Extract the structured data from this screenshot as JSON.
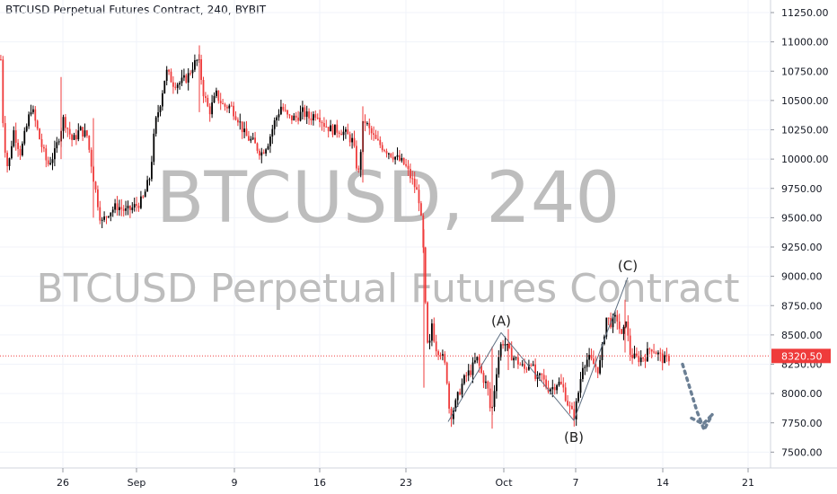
{
  "header": {
    "title": "BTCUSD Perpetual Futures Contract, 240, BYBIT"
  },
  "watermark": {
    "symbol_line": "BTCUSD, 240",
    "description_line": "BTCUSD Perpetual Futures Contract"
  },
  "colors": {
    "up": "#000000",
    "down": "#ef3b3b",
    "last_price": "#ef3b3b",
    "projection": "#6b7f94",
    "wave_line": "#5e6f82"
  },
  "chart_data": {
    "type": "candlestick",
    "title": "BTCUSD Perpetual Futures Contract, 240, BYBIT",
    "xlabel": "",
    "ylabel": "",
    "ylim": [
      7400,
      11350
    ],
    "y_ticks": [
      "11250.00",
      "11000.00",
      "10750.00",
      "10500.00",
      "10250.00",
      "10000.00",
      "9750.00",
      "9500.00",
      "9250.00",
      "9000.00",
      "8750.00",
      "8500.00",
      "8250.00",
      "8000.00",
      "7750.00",
      "7500.00"
    ],
    "x_ticks": [
      "26",
      "Sep",
      "9",
      "16",
      "23",
      "Oct",
      "7",
      "14",
      "21"
    ],
    "last_price": {
      "label": "8320.50",
      "value": 8320.5
    },
    "grid": true,
    "close_path": [
      [
        0,
        10850
      ],
      [
        3,
        10200
      ],
      [
        8,
        9900
      ],
      [
        14,
        10250
      ],
      [
        22,
        10050
      ],
      [
        34,
        10450
      ],
      [
        44,
        10150
      ],
      [
        52,
        9950
      ],
      [
        60,
        10050
      ],
      [
        70,
        10350
      ],
      [
        80,
        10150
      ],
      [
        88,
        10250
      ],
      [
        96,
        10200
      ],
      [
        104,
        9800
      ],
      [
        112,
        9450
      ],
      [
        120,
        9550
      ],
      [
        130,
        9600
      ],
      [
        140,
        9550
      ],
      [
        150,
        9600
      ],
      [
        158,
        9650
      ],
      [
        166,
        9850
      ],
      [
        172,
        10300
      ],
      [
        178,
        10500
      ],
      [
        184,
        10750
      ],
      [
        192,
        10650
      ],
      [
        200,
        10650
      ],
      [
        208,
        10700
      ],
      [
        214,
        10800
      ],
      [
        220,
        10850
      ],
      [
        226,
        10550
      ],
      [
        232,
        10400
      ],
      [
        240,
        10550
      ],
      [
        248,
        10450
      ],
      [
        256,
        10450
      ],
      [
        264,
        10350
      ],
      [
        272,
        10200
      ],
      [
        280,
        10150
      ],
      [
        290,
        10050
      ],
      [
        298,
        10150
      ],
      [
        304,
        10300
      ],
      [
        312,
        10450
      ],
      [
        320,
        10350
      ],
      [
        328,
        10350
      ],
      [
        336,
        10400
      ],
      [
        344,
        10350
      ],
      [
        352,
        10400
      ],
      [
        360,
        10300
      ],
      [
        368,
        10250
      ],
      [
        378,
        10250
      ],
      [
        386,
        10200
      ],
      [
        392,
        10150
      ],
      [
        398,
        9850
      ],
      [
        404,
        10350
      ],
      [
        410,
        10250
      ],
      [
        418,
        10150
      ],
      [
        426,
        10100
      ],
      [
        434,
        10050
      ],
      [
        442,
        10000
      ],
      [
        450,
        9950
      ],
      [
        456,
        9850
      ],
      [
        462,
        9750
      ],
      [
        466,
        9650
      ],
      [
        470,
        9300
      ],
      [
        473,
        8700
      ],
      [
        476,
        8300
      ],
      [
        480,
        8600
      ],
      [
        484,
        8400
      ],
      [
        490,
        8350
      ],
      [
        496,
        8200
      ],
      [
        500,
        7800
      ],
      [
        506,
        7900
      ],
      [
        512,
        8050
      ],
      [
        518,
        8150
      ],
      [
        524,
        8200
      ],
      [
        530,
        8300
      ],
      [
        536,
        8150
      ],
      [
        542,
        8050
      ],
      [
        546,
        7800
      ],
      [
        552,
        8200
      ],
      [
        556,
        8400
      ],
      [
        560,
        8450
      ],
      [
        566,
        8350
      ],
      [
        572,
        8300
      ],
      [
        578,
        8250
      ],
      [
        584,
        8200
      ],
      [
        590,
        8300
      ],
      [
        596,
        8100
      ],
      [
        602,
        8150
      ],
      [
        608,
        8050
      ],
      [
        614,
        8050
      ],
      [
        620,
        8100
      ],
      [
        626,
        8050
      ],
      [
        632,
        7900
      ],
      [
        638,
        7800
      ],
      [
        642,
        7950
      ],
      [
        648,
        8250
      ],
      [
        654,
        8300
      ],
      [
        660,
        8250
      ],
      [
        666,
        8200
      ],
      [
        670,
        8400
      ],
      [
        674,
        8650
      ],
      [
        680,
        8600
      ],
      [
        686,
        8650
      ],
      [
        692,
        8450
      ],
      [
        696,
        8650
      ],
      [
        700,
        8350
      ],
      [
        706,
        8300
      ],
      [
        712,
        8300
      ],
      [
        718,
        8320
      ],
      [
        724,
        8400
      ],
      [
        730,
        8350
      ],
      [
        736,
        8300
      ],
      [
        740,
        8280
      ],
      [
        746,
        8320
      ]
    ],
    "annotations": [
      {
        "text": "(A)",
        "x": 558,
        "value": 8520
      },
      {
        "text": "(B)",
        "x": 639,
        "value": 7770
      },
      {
        "text": "(C)",
        "x": 699,
        "value": 8990
      }
    ],
    "wave_lines": [
      {
        "from": [
          499,
          7760
        ],
        "to": [
          558,
          8520
        ]
      },
      {
        "from": [
          558,
          8520
        ],
        "to": [
          639,
          7770
        ]
      },
      {
        "from": [
          639,
          7770
        ],
        "to": [
          699,
          8990
        ]
      }
    ],
    "projection": [
      [
        760,
        8250
      ],
      [
        768,
        8050
      ],
      [
        776,
        7850
      ],
      [
        784,
        7690
      ],
      [
        793,
        7820
      ]
    ],
    "projection_loop": [
      [
        770,
        7790
      ],
      [
        783,
        7740
      ],
      [
        793,
        7820
      ]
    ]
  }
}
